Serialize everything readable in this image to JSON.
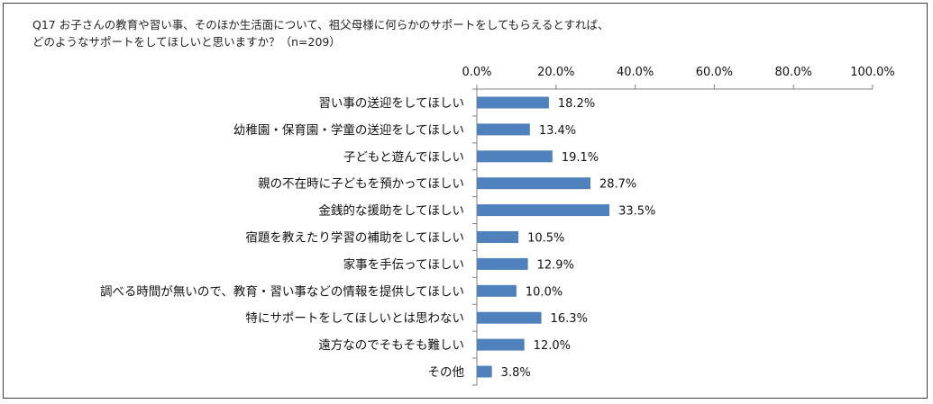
{
  "chart_data": {
    "type": "bar",
    "orientation": "horizontal",
    "title_lines": [
      "Q17 お子さんの教育や習い事、そのほか生活面について、祖父母様に何らかのサポートをしてもらえるとすれば、",
      "どのようなサポートをしてほしいと思いますか？（n=209）"
    ],
    "categories": [
      "習い事の送迎をしてほしい",
      "幼稚園・保育園・学童の送迎をしてほしい",
      "子どもと遊んでほしい",
      "親の不在時に子どもを預かってほしい",
      "金銭的な援助をしてほしい",
      "宿題を教えたり学習の補助をしてほしい",
      "家事を手伝ってほしい",
      "調べる時間が無いので、教育・習い事などの情報を提供してほしい",
      "特にサポートをしてほしいとは思わない",
      "遠方なのでそもそも難しい",
      "その他"
    ],
    "values": [
      18.2,
      13.4,
      19.1,
      28.7,
      33.5,
      10.5,
      12.9,
      10.0,
      16.3,
      12.0,
      3.8
    ],
    "data_labels": [
      "18.2%",
      "13.4%",
      "19.1%",
      "28.7%",
      "33.5%",
      "10.5%",
      "12.9%",
      "10.0%",
      "16.3%",
      "12.0%",
      "3.8%"
    ],
    "xlim": [
      0,
      100
    ],
    "xticks": [
      0,
      20,
      40,
      60,
      80,
      100
    ],
    "xtick_labels": [
      "0.0%",
      "20.0%",
      "40.0%",
      "60.0%",
      "80.0%",
      "100.0%"
    ],
    "axis_position": "top",
    "grid": false,
    "legend": "none",
    "bar_color": "#4f81bd"
  }
}
